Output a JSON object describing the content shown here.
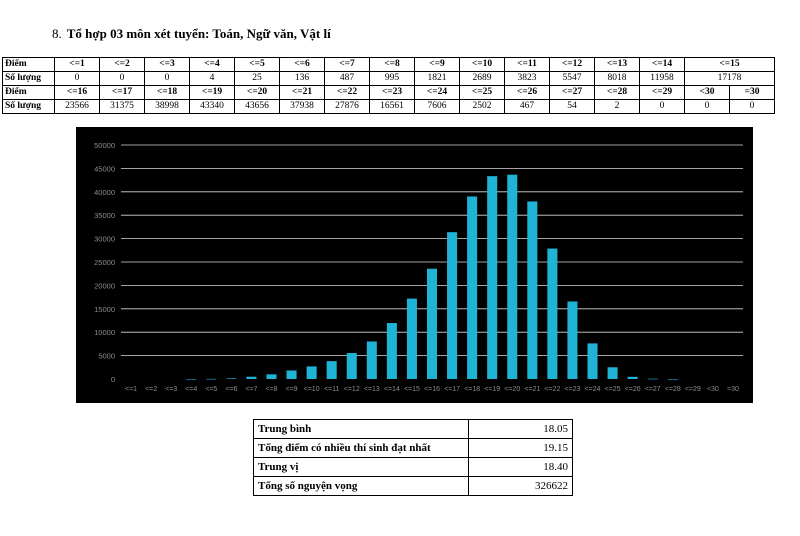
{
  "heading": {
    "number": "8.",
    "title": "Tổ hợp 03 môn xét tuyển: Toán, Ngữ văn, Vật lí"
  },
  "score_table": {
    "row_label_score": "Điểm",
    "row_label_count": "Số lượng",
    "top_headers": [
      "<=1",
      "<=2",
      "<=3",
      "<=4",
      "<=5",
      "<=6",
      "<=7",
      "<=8",
      "<=9",
      "<=10",
      "<=11",
      "<=12",
      "<=13",
      "<=14",
      "<=15"
    ],
    "top_counts": [
      "0",
      "0",
      "0",
      "4",
      "25",
      "136",
      "487",
      "995",
      "1821",
      "2689",
      "3823",
      "5547",
      "8018",
      "11958",
      "17178"
    ],
    "bottom_headers": [
      "<=16",
      "<=17",
      "<=18",
      "<=19",
      "<=20",
      "<=21",
      "<=22",
      "<=23",
      "<=24",
      "<=25",
      "<=26",
      "<=27",
      "<=28",
      "<=29",
      "<30",
      "=30"
    ],
    "bottom_counts": [
      "23566",
      "31375",
      "38998",
      "43340",
      "43656",
      "37938",
      "27876",
      "16561",
      "7606",
      "2502",
      "467",
      "54",
      "2",
      "0",
      "0",
      "0"
    ]
  },
  "chart_data": {
    "type": "bar",
    "categories": [
      "<=1",
      "<=2",
      "<=3",
      "<=4",
      "<=5",
      "<=6",
      "<=7",
      "<=8",
      "<=9",
      "<=10",
      "<=11",
      "<=12",
      "<=13",
      "<=14",
      "<=15",
      "<=16",
      "<=17",
      "<=18",
      "<=19",
      "<=20",
      "<=21",
      "<=22",
      "<=23",
      "<=24",
      "<=25",
      "<=26",
      "<=27",
      "<=28",
      "<=29",
      "<30",
      "=30"
    ],
    "values": [
      0,
      0,
      0,
      4,
      25,
      136,
      487,
      995,
      1821,
      2689,
      3823,
      5547,
      8018,
      11958,
      17178,
      23566,
      31375,
      38998,
      43340,
      43656,
      37938,
      27876,
      16561,
      7606,
      2502,
      467,
      54,
      2,
      0,
      0,
      0
    ],
    "ylim": [
      0,
      50000
    ],
    "yticks": [
      0,
      5000,
      10000,
      15000,
      20000,
      25000,
      30000,
      35000,
      40000,
      45000,
      50000
    ],
    "grid": true,
    "background": "#000000",
    "bar_color": "#1fb4d6",
    "grid_color": "#d9d9d9",
    "label_color": "#8c8c8c"
  },
  "stats": [
    {
      "label": "Trung bình",
      "value": "18.05"
    },
    {
      "label": "Tổng điểm có nhiều thí sinh đạt nhất",
      "value": "19.15"
    },
    {
      "label": "Trung vị",
      "value": "18.40"
    },
    {
      "label": "Tổng số nguyện vọng",
      "value": "326622"
    }
  ]
}
